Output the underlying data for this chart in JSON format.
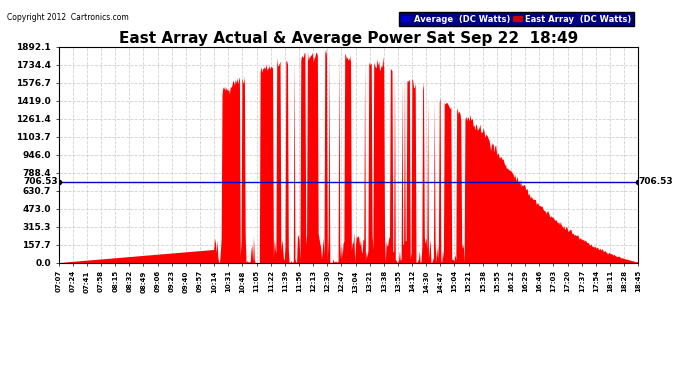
{
  "title": "East Array Actual & Average Power Sat Sep 22  18:49",
  "copyright": "Copyright 2012  Cartronics.com",
  "average_value": 706.53,
  "y_max": 1892.1,
  "y_ticks": [
    0.0,
    157.7,
    315.3,
    473.0,
    630.7,
    788.4,
    946.0,
    1103.7,
    1261.4,
    1419.0,
    1576.7,
    1734.4,
    1892.1
  ],
  "x_labels": [
    "07:07",
    "07:24",
    "07:41",
    "07:58",
    "08:15",
    "08:32",
    "08:49",
    "09:06",
    "09:23",
    "09:40",
    "09:57",
    "10:14",
    "10:31",
    "10:48",
    "11:05",
    "11:22",
    "11:39",
    "11:56",
    "12:13",
    "12:30",
    "12:47",
    "13:04",
    "13:21",
    "13:38",
    "13:55",
    "14:12",
    "14:30",
    "14:47",
    "15:04",
    "15:21",
    "15:38",
    "15:55",
    "16:12",
    "16:29",
    "16:46",
    "17:03",
    "17:20",
    "17:37",
    "17:54",
    "18:11",
    "18:28",
    "18:45"
  ],
  "area_color": "#ff0000",
  "avg_line_color": "#0000cc",
  "background_color": "#ffffff",
  "grid_color": "#cccccc",
  "title_fontsize": 11,
  "legend_avg_bg": "#0000cc",
  "legend_east_bg": "#cc0000"
}
